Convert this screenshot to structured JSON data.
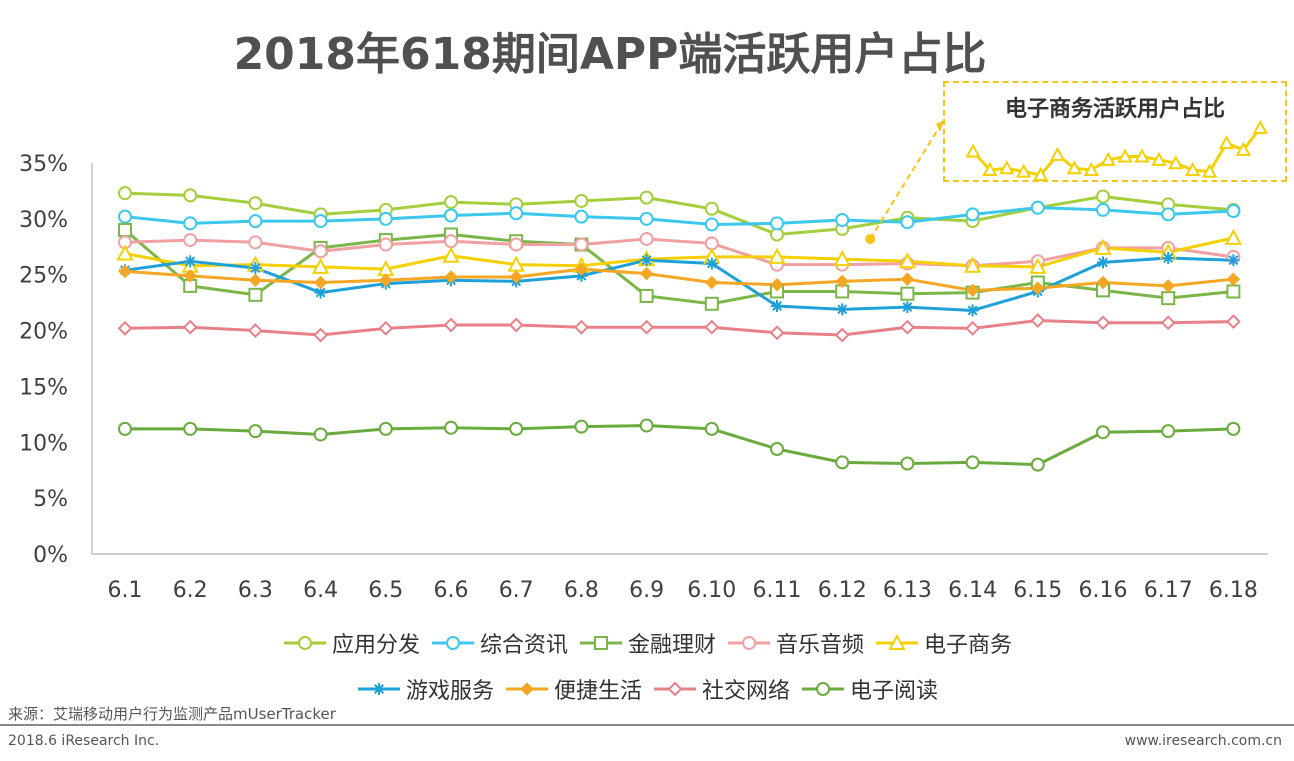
{
  "title": "2018年618期间APP端活跃用户占比",
  "source": "来源：艾瑞移动用户行为监测产品mUserTracker",
  "footer": {
    "left": "2018.6 iResearch Inc.",
    "right": "www.iresearch.com.cn"
  },
  "inset": {
    "title": "电子商务活跃用户占比"
  },
  "chart_data": [
    {
      "type": "line",
      "x": [
        "6.1",
        "6.2",
        "6.3",
        "6.4",
        "6.5",
        "6.6",
        "6.7",
        "6.8",
        "6.9",
        "6.10",
        "6.11",
        "6.12",
        "6.13",
        "6.14",
        "6.15",
        "6.16",
        "6.17",
        "6.18"
      ],
      "ylim": [
        0,
        35
      ],
      "yticks": [
        "0%",
        "5%",
        "10%",
        "15%",
        "20%",
        "25%",
        "30%",
        "35%"
      ],
      "grid": false,
      "legend": "bottom",
      "series": [
        {
          "name": "应用分发",
          "color": "#a4cf3c",
          "marker": "circle-open",
          "values": [
            32.3,
            32.1,
            31.4,
            30.4,
            30.8,
            31.5,
            31.3,
            31.6,
            31.9,
            30.9,
            28.6,
            29.1,
            30.1,
            29.8,
            31.0,
            32.0,
            31.3,
            30.8
          ]
        },
        {
          "name": "综合资讯",
          "color": "#3cc7ec",
          "marker": "circle-open",
          "values": [
            30.2,
            29.6,
            29.8,
            29.8,
            30.0,
            30.3,
            30.5,
            30.2,
            30.0,
            29.5,
            29.6,
            29.9,
            29.7,
            30.4,
            31.0,
            30.8,
            30.4,
            30.7
          ]
        },
        {
          "name": "金融理财",
          "color": "#7ab648",
          "marker": "square-open",
          "values": [
            29.0,
            24.0,
            23.2,
            27.4,
            28.1,
            28.6,
            28.0,
            27.7,
            23.1,
            22.4,
            23.5,
            23.5,
            23.3,
            23.4,
            24.3,
            23.6,
            22.9,
            23.5
          ]
        },
        {
          "name": "音乐音频",
          "color": "#f0a0a0",
          "marker": "circle-open",
          "values": [
            27.9,
            28.1,
            27.9,
            27.1,
            27.7,
            28.0,
            27.7,
            27.7,
            28.2,
            27.8,
            25.9,
            25.9,
            26.0,
            25.8,
            26.2,
            27.4,
            27.4,
            26.6
          ]
        },
        {
          "name": "电子商务",
          "color": "#f5d000",
          "marker": "triangle-open",
          "values": [
            26.9,
            25.8,
            25.9,
            25.7,
            25.5,
            26.7,
            25.9,
            25.8,
            26.4,
            26.6,
            26.6,
            26.4,
            26.2,
            25.8,
            25.7,
            27.4,
            27.0,
            28.3
          ]
        },
        {
          "name": "游戏服务",
          "color": "#1ea0d8",
          "marker": "star",
          "values": [
            25.4,
            26.2,
            25.6,
            23.4,
            24.2,
            24.5,
            24.4,
            24.9,
            26.3,
            26.0,
            22.2,
            21.9,
            22.1,
            21.8,
            23.5,
            26.1,
            26.5,
            26.3
          ]
        },
        {
          "name": "便捷生活",
          "color": "#f5a623",
          "marker": "diamond-filled",
          "values": [
            25.3,
            24.9,
            24.5,
            24.3,
            24.5,
            24.8,
            24.8,
            25.5,
            25.1,
            24.3,
            24.1,
            24.4,
            24.6,
            23.6,
            23.8,
            24.3,
            24.0,
            24.6
          ]
        },
        {
          "name": "社交网络",
          "color": "#e8808a",
          "marker": "diamond-open",
          "values": [
            20.2,
            20.3,
            20.0,
            19.6,
            20.2,
            20.5,
            20.5,
            20.3,
            20.3,
            20.3,
            19.8,
            19.6,
            20.3,
            20.2,
            20.9,
            20.7,
            20.7,
            20.8
          ]
        },
        {
          "name": "电子阅读",
          "color": "#6aab3f",
          "marker": "circle-open",
          "values": [
            11.2,
            11.2,
            11.0,
            10.7,
            11.2,
            11.3,
            11.2,
            11.4,
            11.5,
            11.2,
            9.4,
            8.2,
            8.1,
            8.2,
            8.0,
            10.9,
            11.0,
            11.2
          ]
        }
      ]
    },
    {
      "type": "line",
      "title": "电子商务活跃用户占比",
      "series": [
        {
          "name": "电子商务",
          "color": "#f5d000",
          "marker": "triangle-open",
          "values": [
            26.9,
            25.8,
            25.9,
            25.7,
            25.5,
            26.7,
            25.9,
            25.8,
            26.4,
            26.6,
            26.6,
            26.4,
            26.2,
            25.8,
            25.7,
            27.4,
            27.0,
            28.3
          ]
        }
      ]
    }
  ]
}
